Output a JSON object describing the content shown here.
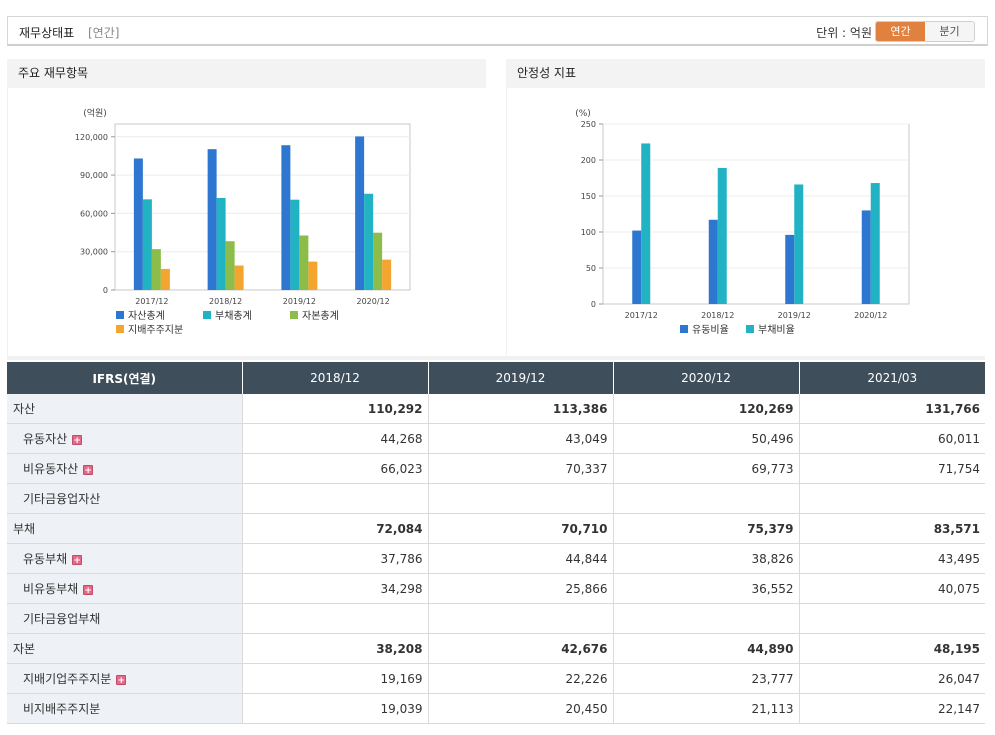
{
  "header": {
    "title": "재무상태표",
    "subtitle": "[연간]",
    "unit": "단위 : 억원",
    "toggle_annual": "연간",
    "toggle_quarter": "분기"
  },
  "panels": {
    "left_title": "주요 재무항목",
    "right_title": "안정성 지표"
  },
  "chart_data": [
    {
      "type": "bar",
      "title": "주요 재무항목",
      "ylabel": "(억원)",
      "categories": [
        "2017/12",
        "2018/12",
        "2019/12",
        "2020/12"
      ],
      "ylim": [
        0,
        130000
      ],
      "yticks": [
        0,
        30000,
        60000,
        90000,
        120000
      ],
      "ytick_labels": [
        "0",
        "30,000",
        "60,000",
        "90,000",
        "120,000"
      ],
      "series": [
        {
          "name": "자산총계",
          "color": "#2e77d0",
          "values": [
            103000,
            110292,
            113386,
            120269
          ]
        },
        {
          "name": "부채총계",
          "color": "#21b3c3",
          "values": [
            71000,
            72084,
            70710,
            75379
          ]
        },
        {
          "name": "자본총계",
          "color": "#8cbd4a",
          "values": [
            32000,
            38208,
            42676,
            44890
          ]
        },
        {
          "name": "지배주주지분",
          "color": "#f3a530",
          "values": [
            16500,
            19169,
            22226,
            23777
          ]
        }
      ],
      "legend": "bottom"
    },
    {
      "type": "bar",
      "title": "안정성 지표",
      "ylabel": "(%)",
      "categories": [
        "2017/12",
        "2018/12",
        "2019/12",
        "2020/12"
      ],
      "ylim": [
        0,
        250
      ],
      "yticks": [
        0,
        50,
        100,
        150,
        200,
        250
      ],
      "ytick_labels": [
        "0",
        "50",
        "100",
        "150",
        "200",
        "250"
      ],
      "series": [
        {
          "name": "유동비율",
          "color": "#2e77d0",
          "values": [
            102,
            117,
            96,
            130
          ]
        },
        {
          "name": "부채비율",
          "color": "#21b3c3",
          "values": [
            223,
            189,
            166,
            168
          ]
        }
      ],
      "legend": "bottom"
    }
  ],
  "table": {
    "headers": [
      "IFRS(연결)",
      "2018/12",
      "2019/12",
      "2020/12",
      "2021/03"
    ],
    "rows": [
      {
        "label": "자산",
        "kind": "main",
        "expand": false,
        "values": [
          "110,292",
          "113,386",
          "120,269",
          "131,766"
        ]
      },
      {
        "label": "유동자산",
        "kind": "sub",
        "expand": true,
        "values": [
          "44,268",
          "43,049",
          "50,496",
          "60,011"
        ]
      },
      {
        "label": "비유동자산",
        "kind": "sub",
        "expand": true,
        "values": [
          "66,023",
          "70,337",
          "69,773",
          "71,754"
        ]
      },
      {
        "label": "기타금융업자산",
        "kind": "sub",
        "expand": false,
        "values": [
          "",
          "",
          "",
          ""
        ]
      },
      {
        "label": "부채",
        "kind": "main",
        "expand": false,
        "values": [
          "72,084",
          "70,710",
          "75,379",
          "83,571"
        ]
      },
      {
        "label": "유동부채",
        "kind": "sub",
        "expand": true,
        "values": [
          "37,786",
          "44,844",
          "38,826",
          "43,495"
        ]
      },
      {
        "label": "비유동부채",
        "kind": "sub",
        "expand": true,
        "values": [
          "34,298",
          "25,866",
          "36,552",
          "40,075"
        ]
      },
      {
        "label": "기타금융업부채",
        "kind": "sub",
        "expand": false,
        "values": [
          "",
          "",
          "",
          ""
        ]
      },
      {
        "label": "자본",
        "kind": "main",
        "expand": false,
        "values": [
          "38,208",
          "42,676",
          "44,890",
          "48,195"
        ]
      },
      {
        "label": "지배기업주주지분",
        "kind": "sub",
        "expand": true,
        "values": [
          "19,169",
          "22,226",
          "23,777",
          "26,047"
        ]
      },
      {
        "label": "비지배주주지분",
        "kind": "sub",
        "expand": false,
        "values": [
          "19,039",
          "20,450",
          "21,113",
          "22,147"
        ]
      }
    ],
    "expand_icon": "plus-icon"
  }
}
